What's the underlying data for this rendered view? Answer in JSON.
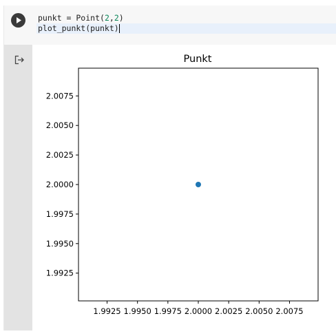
{
  "cell": {
    "code": {
      "line1": [
        {
          "t": "punkt = Point(",
          "c": "plain"
        },
        {
          "t": "2",
          "c": "num"
        },
        {
          "t": ",",
          "c": "plain"
        },
        {
          "t": "2",
          "c": "num"
        },
        {
          "t": ")",
          "c": "plain"
        }
      ],
      "line2": [
        {
          "t": "plot_punkt(punkt)",
          "c": "plain"
        }
      ]
    },
    "run_icon": "play-icon",
    "output_icon": "output-redirect-icon"
  },
  "colors": {
    "point": "#1f77b4",
    "code_text": "#212121",
    "number_literal": "#098658",
    "active_line": "#e8f0fb"
  },
  "chart_data": {
    "type": "scatter",
    "title": "Punkt",
    "xlabel": "",
    "ylabel": "",
    "points": [
      {
        "x": 2.0,
        "y": 2.0
      }
    ],
    "xlim": [
      1.9,
      2.1
    ],
    "ylim": [
      1.9,
      2.1
    ],
    "xticks": [
      1.9925,
      1.995,
      1.9975,
      2.0,
      2.0025,
      2.005,
      2.0075
    ],
    "xtick_labels": [
      "1.9925",
      "1.9950",
      "1.9975",
      "2.0000",
      "2.0025",
      "2.0050",
      "2.0075"
    ],
    "yticks": [
      2.0075,
      2.005,
      2.0025,
      2.0,
      1.9975,
      1.995,
      1.9925
    ],
    "ytick_labels": [
      "2.0075",
      "2.0050",
      "2.0025",
      "2.0000",
      "1.9975",
      "1.9950",
      "1.9925"
    ],
    "grid": false
  }
}
